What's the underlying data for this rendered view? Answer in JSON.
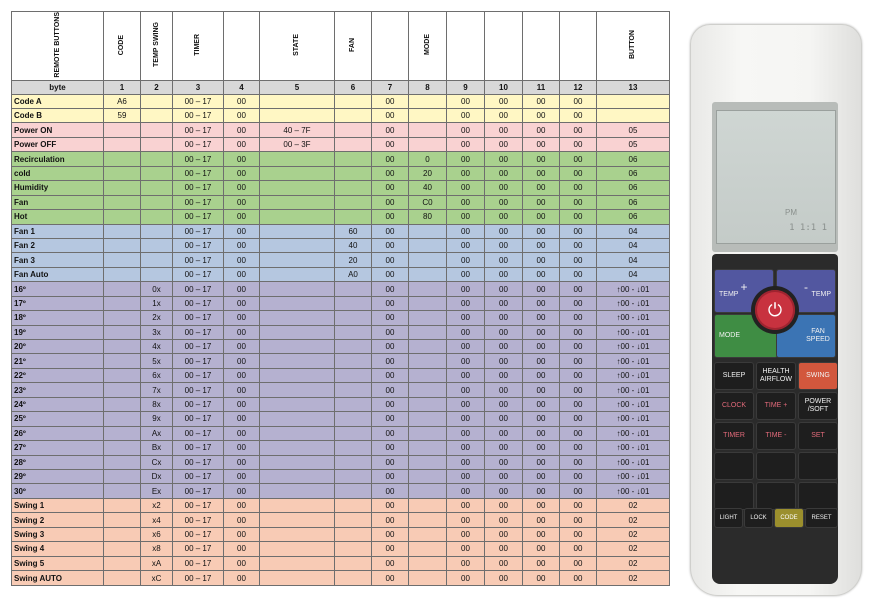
{
  "table": {
    "header": [
      "REMOTE BUTTONS",
      "CODE",
      "TEMP SWING",
      "TIMER",
      "",
      "STATE",
      "FAN",
      "",
      "MODE",
      "",
      "",
      "",
      "",
      "BUTTON"
    ],
    "byte_row": [
      "byte",
      "1",
      "2",
      "3",
      "4",
      "5",
      "6",
      "7",
      "8",
      "9",
      "10",
      "11",
      "12",
      "13"
    ],
    "groups": [
      {
        "color": "yellow",
        "rows": [
          [
            "Code A",
            "A6",
            "",
            "00 – 17",
            "00",
            "",
            "",
            "00",
            "",
            "00",
            "00",
            "00",
            "00",
            ""
          ],
          [
            "Code B",
            "59",
            "",
            "00 – 17",
            "00",
            "",
            "",
            "00",
            "",
            "00",
            "00",
            "00",
            "00",
            ""
          ]
        ]
      },
      {
        "color": "pink",
        "rows": [
          [
            "Power ON",
            "",
            "",
            "00 – 17",
            "00",
            "40 – 7F",
            "",
            "00",
            "",
            "00",
            "00",
            "00",
            "00",
            "05"
          ],
          [
            "Power OFF",
            "",
            "",
            "00 – 17",
            "00",
            "00 – 3F",
            "",
            "00",
            "",
            "00",
            "00",
            "00",
            "00",
            "05"
          ]
        ]
      },
      {
        "color": "green",
        "rows": [
          [
            "Recirculation",
            "",
            "",
            "00 – 17",
            "00",
            "",
            "",
            "00",
            "0",
            "00",
            "00",
            "00",
            "00",
            "06"
          ],
          [
            "cold",
            "",
            "",
            "00 – 17",
            "00",
            "",
            "",
            "00",
            "20",
            "00",
            "00",
            "00",
            "00",
            "06"
          ],
          [
            "Humidity",
            "",
            "",
            "00 – 17",
            "00",
            "",
            "",
            "00",
            "40",
            "00",
            "00",
            "00",
            "00",
            "06"
          ],
          [
            "Fan",
            "",
            "",
            "00 – 17",
            "00",
            "",
            "",
            "00",
            "C0",
            "00",
            "00",
            "00",
            "00",
            "06"
          ],
          [
            "Hot",
            "",
            "",
            "00 – 17",
            "00",
            "",
            "",
            "00",
            "80",
            "00",
            "00",
            "00",
            "00",
            "06"
          ]
        ]
      },
      {
        "color": "blue",
        "rows": [
          [
            "Fan 1",
            "",
            "",
            "00 – 17",
            "00",
            "",
            "60",
            "00",
            "",
            "00",
            "00",
            "00",
            "00",
            "04"
          ],
          [
            "Fan 2",
            "",
            "",
            "00 – 17",
            "00",
            "",
            "40",
            "00",
            "",
            "00",
            "00",
            "00",
            "00",
            "04"
          ],
          [
            "Fan 3",
            "",
            "",
            "00 – 17",
            "00",
            "",
            "20",
            "00",
            "",
            "00",
            "00",
            "00",
            "00",
            "04"
          ],
          [
            "Fan Auto",
            "",
            "",
            "00 – 17",
            "00",
            "",
            "A0",
            "00",
            "",
            "00",
            "00",
            "00",
            "00",
            "04"
          ]
        ]
      },
      {
        "color": "purple",
        "rows": [
          [
            "16º",
            "",
            "0x",
            "00 – 17",
            "00",
            "",
            "",
            "00",
            "",
            "00",
            "00",
            "00",
            "00",
            "↑00 - ↓01"
          ],
          [
            "17º",
            "",
            "1x",
            "00 – 17",
            "00",
            "",
            "",
            "00",
            "",
            "00",
            "00",
            "00",
            "00",
            "↑00 - ↓01"
          ],
          [
            "18º",
            "",
            "2x",
            "00 – 17",
            "00",
            "",
            "",
            "00",
            "",
            "00",
            "00",
            "00",
            "00",
            "↑00 - ↓01"
          ],
          [
            "19º",
            "",
            "3x",
            "00 – 17",
            "00",
            "",
            "",
            "00",
            "",
            "00",
            "00",
            "00",
            "00",
            "↑00 - ↓01"
          ],
          [
            "20º",
            "",
            "4x",
            "00 – 17",
            "00",
            "",
            "",
            "00",
            "",
            "00",
            "00",
            "00",
            "00",
            "↑00 - ↓01"
          ],
          [
            "21º",
            "",
            "5x",
            "00 – 17",
            "00",
            "",
            "",
            "00",
            "",
            "00",
            "00",
            "00",
            "00",
            "↑00 - ↓01"
          ],
          [
            "22º",
            "",
            "6x",
            "00 – 17",
            "00",
            "",
            "",
            "00",
            "",
            "00",
            "00",
            "00",
            "00",
            "↑00 - ↓01"
          ],
          [
            "23º",
            "",
            "7x",
            "00 – 17",
            "00",
            "",
            "",
            "00",
            "",
            "00",
            "00",
            "00",
            "00",
            "↑00 - ↓01"
          ],
          [
            "24º",
            "",
            "8x",
            "00 – 17",
            "00",
            "",
            "",
            "00",
            "",
            "00",
            "00",
            "00",
            "00",
            "↑00 - ↓01"
          ],
          [
            "25º",
            "",
            "9x",
            "00 – 17",
            "00",
            "",
            "",
            "00",
            "",
            "00",
            "00",
            "00",
            "00",
            "↑00 - ↓01"
          ],
          [
            "26º",
            "",
            "Ax",
            "00 – 17",
            "00",
            "",
            "",
            "00",
            "",
            "00",
            "00",
            "00",
            "00",
            "↑00 - ↓01"
          ],
          [
            "27º",
            "",
            "Bx",
            "00 – 17",
            "00",
            "",
            "",
            "00",
            "",
            "00",
            "00",
            "00",
            "00",
            "↑00 - ↓01"
          ],
          [
            "28º",
            "",
            "Cx",
            "00 – 17",
            "00",
            "",
            "",
            "00",
            "",
            "00",
            "00",
            "00",
            "00",
            "↑00 - ↓01"
          ],
          [
            "29º",
            "",
            "Dx",
            "00 – 17",
            "00",
            "",
            "",
            "00",
            "",
            "00",
            "00",
            "00",
            "00",
            "↑00 - ↓01"
          ],
          [
            "30º",
            "",
            "Ex",
            "00 – 17",
            "00",
            "",
            "",
            "00",
            "",
            "00",
            "00",
            "00",
            "00",
            "↑00 - ↓01"
          ]
        ]
      },
      {
        "color": "salmon",
        "rows": [
          [
            "Swing 1",
            "",
            "x2",
            "00 – 17",
            "00",
            "",
            "",
            "00",
            "",
            "00",
            "00",
            "00",
            "00",
            "02"
          ],
          [
            "Swing 2",
            "",
            "x4",
            "00 – 17",
            "00",
            "",
            "",
            "00",
            "",
            "00",
            "00",
            "00",
            "00",
            "02"
          ],
          [
            "Swing 3",
            "",
            "x6",
            "00 – 17",
            "00",
            "",
            "",
            "00",
            "",
            "00",
            "00",
            "00",
            "00",
            "02"
          ],
          [
            "Swing 4",
            "",
            "x8",
            "00 – 17",
            "00",
            "",
            "",
            "00",
            "",
            "00",
            "00",
            "00",
            "00",
            "02"
          ],
          [
            "Swing 5",
            "",
            "xA",
            "00 – 17",
            "00",
            "",
            "",
            "00",
            "",
            "00",
            "00",
            "00",
            "00",
            "02"
          ],
          [
            "Swing AUTO",
            "",
            "xC",
            "00 – 17",
            "00",
            "",
            "",
            "00",
            "",
            "00",
            "00",
            "00",
            "00",
            "02"
          ]
        ]
      }
    ]
  },
  "remote": {
    "lcd": {
      "clock_label": "PM",
      "readout": "1 1:1 1"
    },
    "buttons": {
      "temp_plus": "TEMP",
      "plus_sign": "+",
      "temp_minus": "TEMP",
      "minus_sign": "-",
      "power_symbol": "⏻",
      "mode": "MODE",
      "fan_speed": "FAN SPEED",
      "sleep": "SLEEP",
      "health_airflow": "HEALTH AIRFLOW",
      "swing": "SWING",
      "clock": "CLOCK",
      "time_plus": "TIME +",
      "power_soft": "POWER /SOFT",
      "timer": "TIMER",
      "time_minus": "TIME -",
      "set": "SET",
      "light": "LIGHT",
      "lock": "LOCK",
      "code": "CODE",
      "reset": "RESET"
    }
  }
}
